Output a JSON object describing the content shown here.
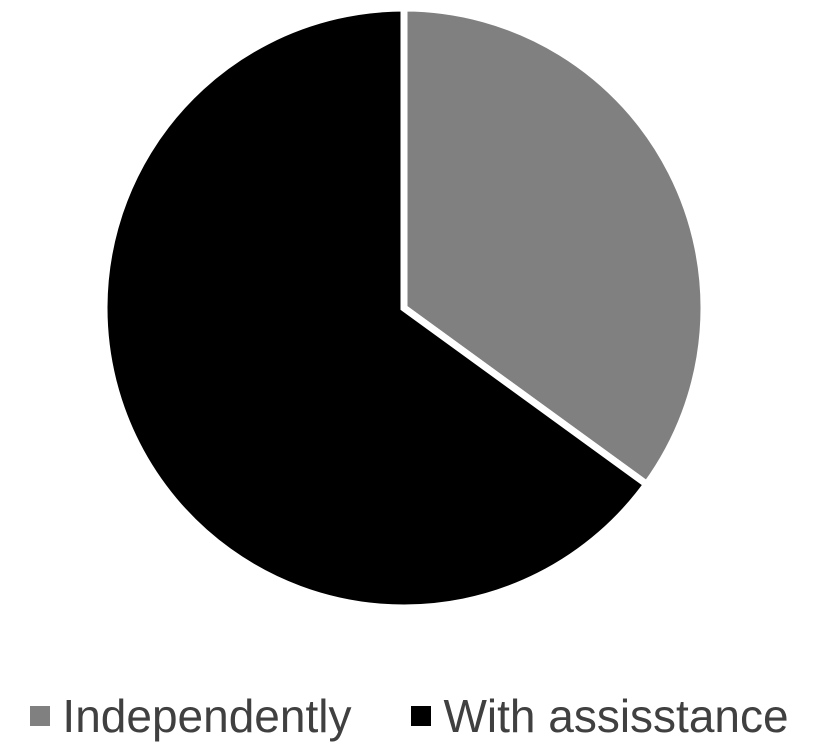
{
  "chart_data": {
    "type": "pie",
    "title": "",
    "slices": [
      {
        "label": "Independently",
        "value": 35,
        "color": "#808080"
      },
      {
        "label": "With assisstance",
        "value": 65,
        "color": "#000000"
      }
    ],
    "start_angle_deg": 0,
    "direction": "clockwise",
    "legend_position": "bottom",
    "slice_separator_color": "#ffffff"
  }
}
